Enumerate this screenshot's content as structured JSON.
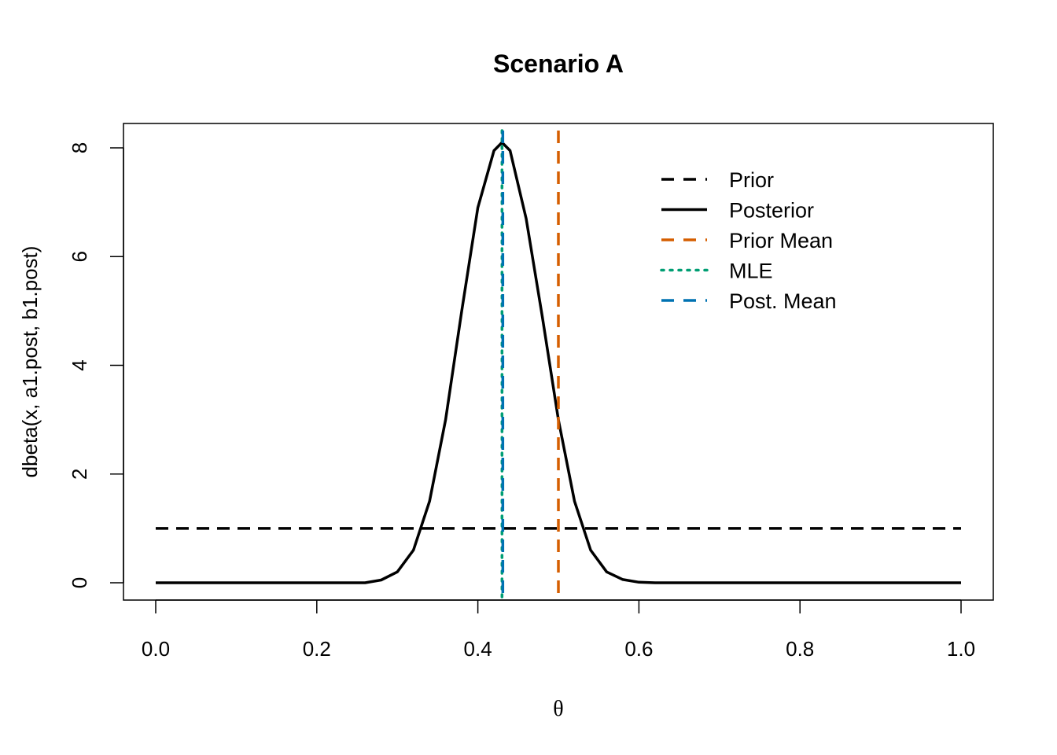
{
  "colors": {
    "prior": "#000000",
    "posterior": "#000000",
    "prior_mean": "#D55E00",
    "mle": "#009E73",
    "post_mean": "#0072B2"
  },
  "chart_data": {
    "type": "line",
    "title": "Scenario A",
    "xlabel": "θ",
    "ylabel": "dbeta(x, a1.post, b1.post)",
    "xlim": [
      0,
      1
    ],
    "ylim": [
      0,
      8.2
    ],
    "x_ticks": [
      "0.0",
      "0.2",
      "0.4",
      "0.6",
      "0.8",
      "1.0"
    ],
    "x_tick_values": [
      0,
      0.2,
      0.4,
      0.6,
      0.8,
      1.0
    ],
    "y_ticks": [
      "0",
      "2",
      "4",
      "6",
      "8"
    ],
    "y_tick_values": [
      0,
      2,
      4,
      6,
      8
    ],
    "grid": false,
    "legend_position": "top-right",
    "legend": [
      {
        "label": "Prior",
        "style": "dashed",
        "color_key": "prior"
      },
      {
        "label": "Posterior",
        "style": "solid",
        "color_key": "posterior"
      },
      {
        "label": "Prior Mean",
        "style": "dashed",
        "color_key": "prior_mean"
      },
      {
        "label": "MLE",
        "style": "dotted",
        "color_key": "mle"
      },
      {
        "label": "Post. Mean",
        "style": "dashed",
        "color_key": "post_mean"
      }
    ],
    "series": [
      {
        "name": "Prior",
        "style": "dashed",
        "color_key": "prior",
        "x": [
          0,
          1
        ],
        "y": [
          1,
          1
        ]
      },
      {
        "name": "Posterior",
        "style": "solid",
        "color_key": "posterior",
        "x": [
          0.0,
          0.26,
          0.28,
          0.3,
          0.32,
          0.34,
          0.36,
          0.38,
          0.4,
          0.42,
          0.43,
          0.44,
          0.46,
          0.48,
          0.5,
          0.52,
          0.54,
          0.56,
          0.58,
          0.6,
          0.62,
          1.0
        ],
        "y": [
          0.0,
          0.0,
          0.05,
          0.2,
          0.6,
          1.5,
          3.0,
          5.0,
          6.9,
          7.95,
          8.1,
          7.95,
          6.7,
          4.9,
          3.0,
          1.5,
          0.6,
          0.2,
          0.06,
          0.01,
          0.0,
          0.0
        ]
      }
    ],
    "vlines": [
      {
        "name": "Prior Mean",
        "x": 0.5,
        "style": "dashed",
        "color_key": "prior_mean"
      },
      {
        "name": "MLE",
        "x": 0.43,
        "style": "dotted",
        "color_key": "mle"
      },
      {
        "name": "Post. Mean",
        "x": 0.431,
        "style": "dashed",
        "color_key": "post_mean"
      }
    ]
  }
}
